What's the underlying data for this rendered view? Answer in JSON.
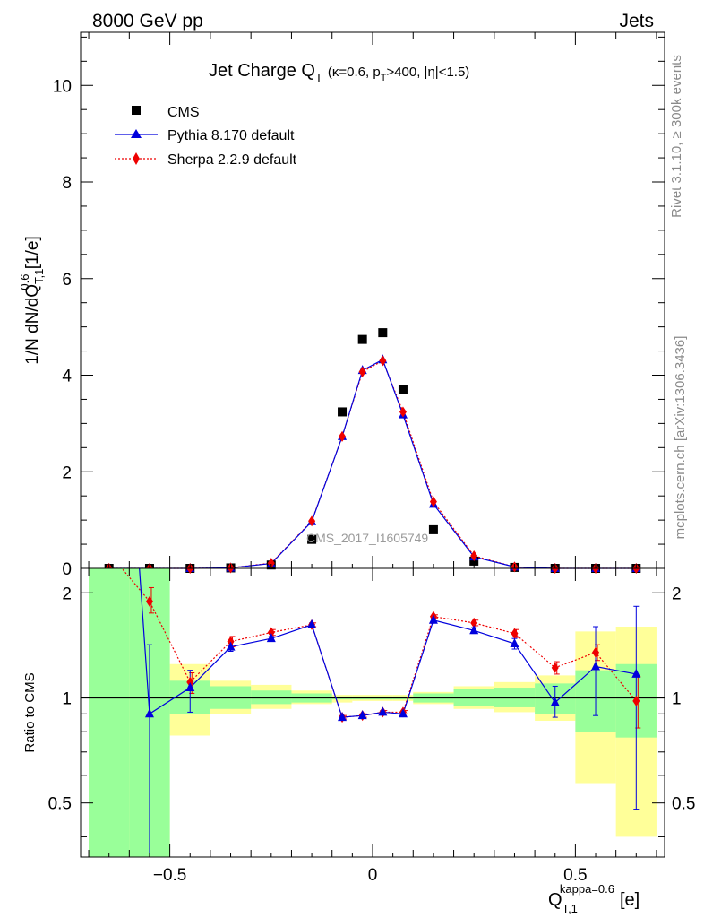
{
  "header": {
    "left": "8000 GeV pp",
    "right": "Jets"
  },
  "side_labels": {
    "rivet": "Rivet 3.1.10, ≥ 300k events",
    "mcplots": "mcplots.cern.ch [arXiv:1306.3436]"
  },
  "watermark": "CMS_2017_I1605749",
  "title": {
    "main": "Jet Charge Q",
    "main_sub": "T",
    "cuts_kappa": "(κ=0.6, p",
    "cuts_pt_sub": "T",
    "cuts_rest": ">400, |η|<1.5)"
  },
  "ylabel": {
    "pre": "1/N dN/dQ",
    "sub": "T,1",
    "sup": "0.6",
    "post": " [1/e]"
  },
  "xlabel": {
    "base": "Q",
    "sub": "T,1",
    "sup": "kappa=0.6",
    "unit": "[e]"
  },
  "ratio_ylabel": "Ratio to CMS",
  "main_yticks": [
    "0",
    "2",
    "4",
    "6",
    "8",
    "10"
  ],
  "ratio_yticks": [
    "0.5",
    "1",
    "2"
  ],
  "xticks": [
    "−0.5",
    "0",
    "0.5"
  ],
  "legend": [
    {
      "label": "CMS",
      "color": "#000000",
      "marker": "square"
    },
    {
      "label": "Pythia 8.170 default",
      "color": "#0000dd",
      "marker": "triangle"
    },
    {
      "label": "Sherpa 2.2.9 default",
      "color": "#ee0000",
      "marker": "diamond"
    }
  ],
  "chart_data": {
    "type": "scatter",
    "xlim": [
      -0.72,
      0.72
    ],
    "ylim": [
      0,
      11.1
    ],
    "ratio_ylim": [
      0.35,
      2.35
    ],
    "ratio_log": true,
    "bins": [
      -0.7,
      -0.6,
      -0.5,
      -0.4,
      -0.3,
      -0.2,
      -0.1,
      -0.05,
      0.0,
      0.05,
      0.1,
      0.2,
      0.3,
      0.4,
      0.5,
      0.6,
      0.7
    ],
    "x": [
      -0.65,
      -0.55,
      -0.45,
      -0.35,
      -0.25,
      -0.15,
      -0.075,
      -0.025,
      0.025,
      0.075,
      0.15,
      0.25,
      0.35,
      0.45,
      0.55,
      0.65
    ],
    "series": [
      {
        "name": "CMS",
        "color": "#000000",
        "values": [
          0.0,
          0.0,
          0.0,
          0.01,
          0.07,
          0.6,
          3.24,
          4.74,
          4.88,
          3.7,
          0.8,
          0.15,
          0.02,
          0.0,
          0.0,
          0.0
        ]
      },
      {
        "name": "Pythia 8.170 default",
        "color": "#0000dd",
        "values": [
          0.0,
          0.0,
          0.0,
          0.01,
          0.1,
          0.97,
          2.73,
          4.1,
          4.32,
          3.18,
          1.33,
          0.24,
          0.03,
          0.0,
          0.0,
          0.0
        ]
      },
      {
        "name": "Sherpa 2.2.9 default",
        "color": "#ee0000",
        "values": [
          0.0,
          0.0,
          0.0,
          0.01,
          0.11,
          0.98,
          2.73,
          4.07,
          4.3,
          3.24,
          1.38,
          0.26,
          0.03,
          0.0,
          0.0,
          0.0
        ]
      }
    ],
    "ratio": {
      "stat_band": [
        [
          0.35,
          2.35
        ],
        [
          0.35,
          2.35
        ],
        [
          0.9,
          1.12
        ],
        [
          0.93,
          1.08
        ],
        [
          0.96,
          1.05
        ],
        [
          0.97,
          1.03
        ],
        [
          0.99,
          1.01
        ],
        [
          0.99,
          1.01
        ],
        [
          0.99,
          1.01
        ],
        [
          0.99,
          1.01
        ],
        [
          0.97,
          1.03
        ],
        [
          0.95,
          1.06
        ],
        [
          0.94,
          1.07
        ],
        [
          0.9,
          1.1
        ],
        [
          0.8,
          1.2
        ],
        [
          0.77,
          1.25
        ]
      ],
      "syst_band": [
        [
          0.35,
          2.35
        ],
        [
          0.35,
          1.65
        ],
        [
          0.78,
          1.25
        ],
        [
          0.9,
          1.12
        ],
        [
          0.93,
          1.09
        ],
        [
          0.96,
          1.05
        ],
        [
          0.97,
          1.02
        ],
        [
          0.98,
          1.02
        ],
        [
          0.98,
          1.02
        ],
        [
          0.98,
          1.02
        ],
        [
          0.96,
          1.04
        ],
        [
          0.93,
          1.08
        ],
        [
          0.91,
          1.11
        ],
        [
          0.86,
          1.16
        ],
        [
          0.57,
          1.55
        ],
        [
          0.4,
          1.6
        ]
      ],
      "pythia": [
        null,
        0.9,
        1.07,
        1.4,
        1.48,
        1.62,
        0.88,
        0.89,
        0.91,
        0.9,
        1.67,
        1.56,
        1.43,
        0.97,
        1.23,
        1.17
      ],
      "pythia_err": [
        [
          null,
          null
        ],
        [
          0.35,
          1.42
        ],
        [
          0.91,
          1.2
        ],
        [
          1.36,
          1.44
        ],
        [
          1.46,
          1.5
        ],
        [
          1.6,
          1.64
        ],
        [
          0.87,
          0.89
        ],
        [
          0.88,
          0.9
        ],
        [
          0.9,
          0.92
        ],
        [
          0.89,
          0.91
        ],
        [
          1.65,
          1.69
        ],
        [
          1.53,
          1.59
        ],
        [
          1.38,
          1.48
        ],
        [
          0.88,
          1.08
        ],
        [
          0.89,
          1.6
        ],
        [
          0.48,
          1.83
        ]
      ],
      "sherpa": [
        2.6,
        1.89,
        1.11,
        1.45,
        1.54,
        1.62,
        0.88,
        0.89,
        0.91,
        0.91,
        1.71,
        1.64,
        1.53,
        1.22,
        1.35,
        0.98
      ],
      "sherpa_err": [
        [
          null,
          null
        ],
        [
          1.75,
          2.07
        ],
        [
          1.03,
          1.18
        ],
        [
          1.4,
          1.5
        ],
        [
          1.51,
          1.57
        ],
        [
          1.6,
          1.64
        ],
        [
          0.87,
          0.89
        ],
        [
          0.88,
          0.9
        ],
        [
          0.9,
          0.92
        ],
        [
          0.9,
          0.92
        ],
        [
          1.69,
          1.73
        ],
        [
          1.61,
          1.67
        ],
        [
          1.49,
          1.57
        ],
        [
          1.17,
          1.27
        ],
        [
          1.28,
          1.42
        ],
        [
          0.82,
          1.15
        ]
      ]
    }
  }
}
